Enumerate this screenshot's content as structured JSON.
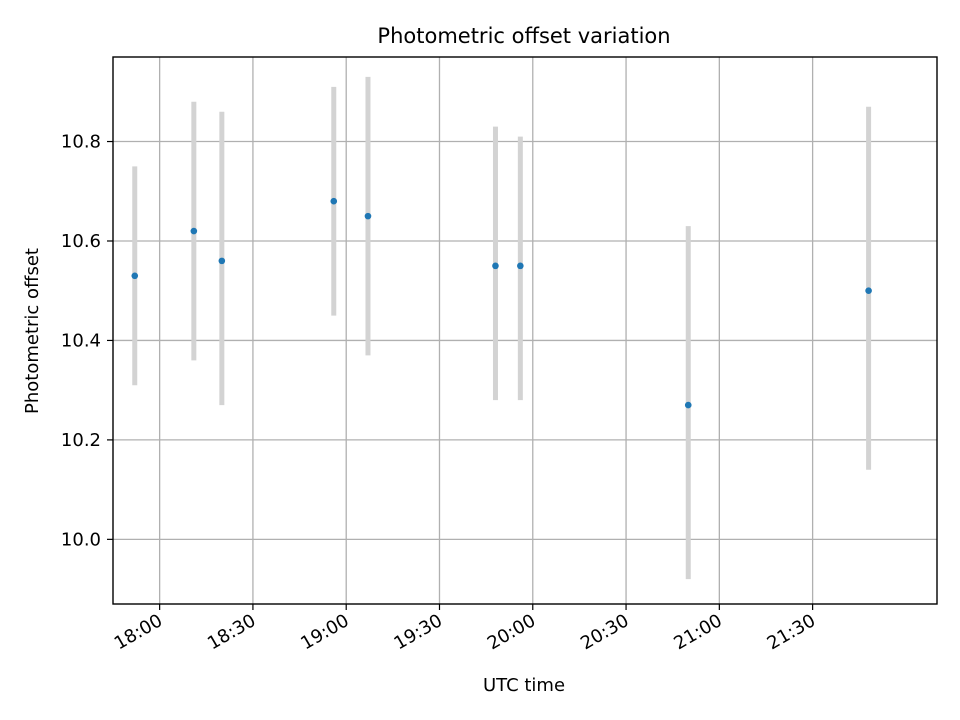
{
  "chart_data": {
    "type": "scatter",
    "title": "Photometric offset variation",
    "xlabel": "UTC time",
    "ylabel": "Photometric offset",
    "x_type": "time",
    "xlim": [
      "17:45",
      "22:10"
    ],
    "ylim": [
      9.87,
      10.97
    ],
    "x_ticks": [
      "18:00",
      "18:30",
      "19:00",
      "19:30",
      "20:00",
      "20:30",
      "21:00",
      "21:30"
    ],
    "y_ticks": [
      "10.0",
      "10.2",
      "10.4",
      "10.6",
      "10.8"
    ],
    "grid": true,
    "series": [
      {
        "points": [
          {
            "x": "17:52",
            "y": 10.53,
            "err_low": 10.31,
            "err_high": 10.75
          },
          {
            "x": "18:11",
            "y": 10.62,
            "err_low": 10.36,
            "err_high": 10.88
          },
          {
            "x": "18:20",
            "y": 10.56,
            "err_low": 10.27,
            "err_high": 10.86
          },
          {
            "x": "18:56",
            "y": 10.68,
            "err_low": 10.45,
            "err_high": 10.91
          },
          {
            "x": "19:07",
            "y": 10.65,
            "err_low": 10.37,
            "err_high": 10.93
          },
          {
            "x": "19:48",
            "y": 10.55,
            "err_low": 10.28,
            "err_high": 10.83
          },
          {
            "x": "19:56",
            "y": 10.55,
            "err_low": 10.28,
            "err_high": 10.81
          },
          {
            "x": "20:50",
            "y": 10.27,
            "err_low": 9.92,
            "err_high": 10.63
          },
          {
            "x": "21:48",
            "y": 10.5,
            "err_low": 10.14,
            "err_high": 10.87
          }
        ]
      }
    ],
    "colors": {
      "marker": "#1f77b4",
      "errorbar": "#d3d3d3",
      "grid": "#b0b0b0",
      "axes": "#000000"
    }
  }
}
